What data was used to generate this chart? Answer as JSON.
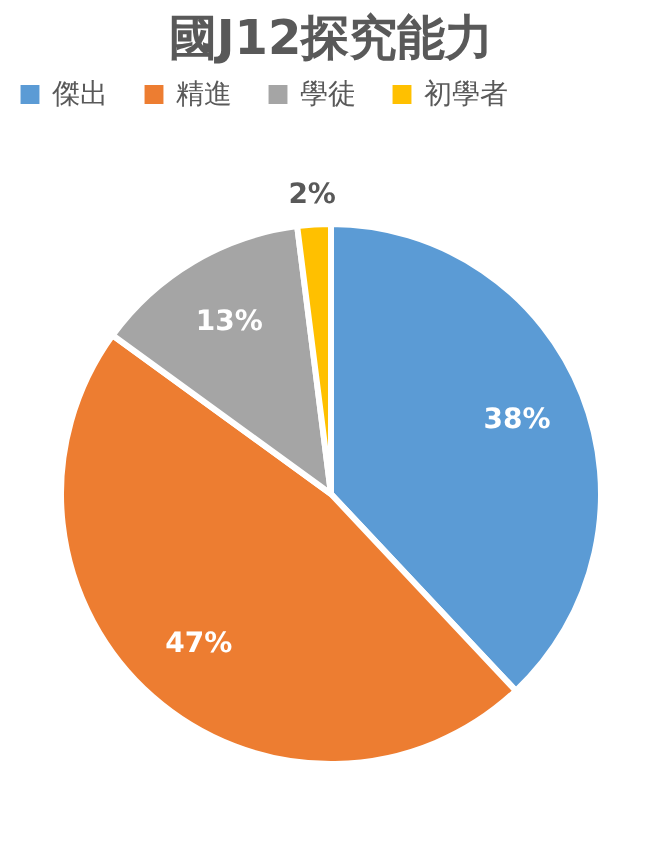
{
  "chart_data": {
    "type": "pie",
    "title": "國J12探究能力",
    "categories": [
      "傑出",
      "精進",
      "學徒",
      "初學者"
    ],
    "values": [
      38,
      47,
      13,
      2
    ],
    "value_labels": [
      "38%",
      "47%",
      "13%",
      "2%"
    ],
    "colors": [
      "#5b9bd5",
      "#ed7d31",
      "#a5a5a5",
      "#ffc000"
    ],
    "legend": "top"
  }
}
